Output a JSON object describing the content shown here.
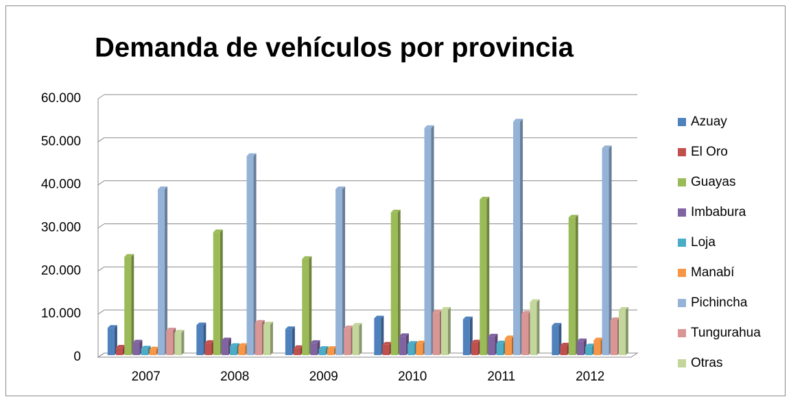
{
  "chart_data": {
    "type": "bar3d",
    "title": "Demanda de vehículos por provincia",
    "categories": [
      "2007",
      "2008",
      "2009",
      "2010",
      "2011",
      "2012"
    ],
    "series": [
      {
        "name": "Azuay",
        "color": "#4f81bd",
        "values": [
          6800,
          7400,
          6500,
          9000,
          8800,
          7300
        ]
      },
      {
        "name": "El Oro",
        "color": "#c0504d",
        "values": [
          2200,
          3300,
          2100,
          2900,
          3400,
          2700
        ]
      },
      {
        "name": "Guayas",
        "color": "#9bbb59",
        "values": [
          23300,
          29000,
          22800,
          33600,
          36600,
          32400
        ]
      },
      {
        "name": "Imbabura",
        "color": "#8064a2",
        "values": [
          3400,
          3900,
          3300,
          4900,
          4800,
          3700
        ]
      },
      {
        "name": "Loja",
        "color": "#4bacc6",
        "values": [
          2000,
          2600,
          1900,
          3100,
          3200,
          2500
        ]
      },
      {
        "name": "Manabí",
        "color": "#f79646",
        "values": [
          1800,
          2600,
          1900,
          3200,
          4400,
          3900
        ]
      },
      {
        "name": "Pichincha",
        "color": "#95b3d7",
        "values": [
          39000,
          46700,
          39000,
          53200,
          54700,
          48500
        ]
      },
      {
        "name": "Tungurahua",
        "color": "#d99694",
        "values": [
          6200,
          8000,
          6700,
          10400,
          10100,
          8600
        ]
      },
      {
        "name": "Otras",
        "color": "#c3d69b",
        "values": [
          5700,
          7600,
          7300,
          11000,
          12800,
          11000
        ]
      }
    ],
    "ylim": [
      0,
      60000
    ],
    "yticks": [
      0,
      {
        "value": 10000,
        "label": "10.000"
      },
      {
        "value": 20000,
        "label": "20.000"
      },
      {
        "value": 30000,
        "label": "30.000"
      },
      {
        "value": 40000,
        "label": "40.000"
      },
      {
        "value": 50000,
        "label": "50.000"
      },
      {
        "value": 60000,
        "label": "60.000"
      }
    ],
    "grid": true,
    "legend": "right"
  }
}
